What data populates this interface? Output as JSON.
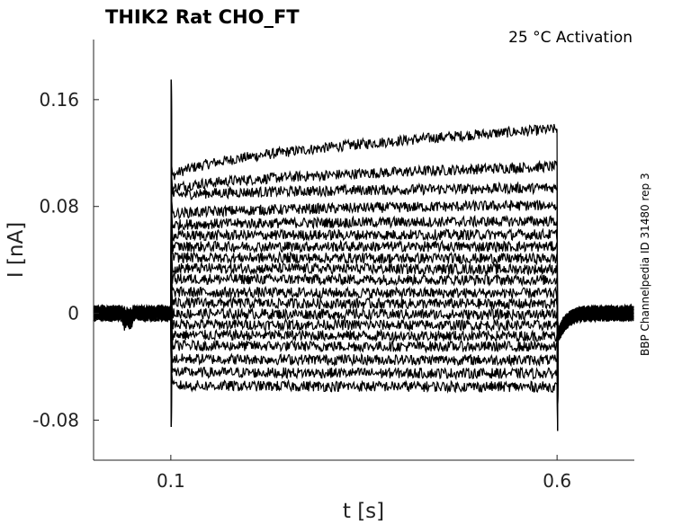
{
  "chart_data": {
    "type": "line",
    "title": "THIK2  Rat  CHO_FT",
    "annotation": "25 °C  Activation",
    "side_label": "BBP Channelpedia ID 31480 rep 3",
    "xlabel": "t [s]",
    "ylabel": "I [nA]",
    "xlim": [
      0.0,
      0.7
    ],
    "ylim": [
      -0.11,
      0.205
    ],
    "x_ticks": [
      0.1,
      0.6
    ],
    "x_tick_labels": [
      "0.1",
      "0.6"
    ],
    "y_ticks": [
      -0.08,
      0,
      0.08,
      0.16
    ],
    "y_tick_labels": [
      "-0.08",
      "0",
      "0.08",
      "0.16"
    ],
    "grid": false,
    "legend": "none",
    "stimulus": {
      "on": 0.1,
      "off": 0.6
    },
    "series": [
      {
        "baseline": 0.0,
        "start": 0.1,
        "end": 0.138
      },
      {
        "baseline": 0.0,
        "start": 0.092,
        "end": 0.11
      },
      {
        "baseline": 0.0,
        "start": 0.088,
        "end": 0.094
      },
      {
        "baseline": 0.0,
        "start": 0.074,
        "end": 0.081
      },
      {
        "baseline": 0.0,
        "start": 0.066,
        "end": 0.069
      },
      {
        "baseline": 0.0,
        "start": 0.058,
        "end": 0.059
      },
      {
        "baseline": 0.0,
        "start": 0.05,
        "end": 0.05
      },
      {
        "baseline": 0.0,
        "start": 0.042,
        "end": 0.041
      },
      {
        "baseline": 0.0,
        "start": 0.034,
        "end": 0.033
      },
      {
        "baseline": 0.0,
        "start": 0.026,
        "end": 0.025
      },
      {
        "baseline": 0.0,
        "start": 0.016,
        "end": 0.015
      },
      {
        "baseline": 0.0,
        "start": 0.008,
        "end": 0.007
      },
      {
        "baseline": 0.0,
        "start": 0.0,
        "end": -0.001
      },
      {
        "baseline": 0.0,
        "start": -0.008,
        "end": -0.009
      },
      {
        "baseline": 0.0,
        "start": -0.016,
        "end": -0.017
      },
      {
        "baseline": 0.0,
        "start": -0.024,
        "end": -0.025
      },
      {
        "baseline": 0.0,
        "start": -0.034,
        "end": -0.035
      },
      {
        "baseline": 0.0,
        "start": -0.044,
        "end": -0.045
      },
      {
        "baseline": 0.0,
        "start": -0.054,
        "end": -0.055
      }
    ]
  }
}
